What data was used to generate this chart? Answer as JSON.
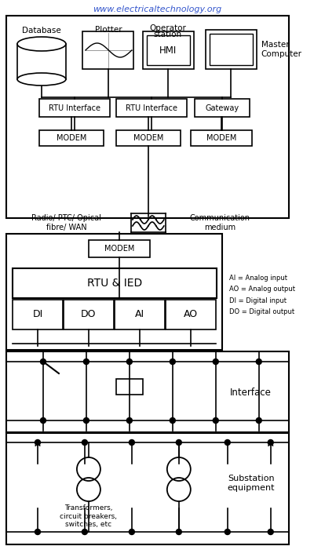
{
  "title": "www.electricaltechnology.org",
  "bg_color": "#ffffff",
  "box_color": "#000000",
  "text_color": "#000000",
  "watermark_color": "#aac8e8",
  "url_color": "#3355cc",
  "legend_text": "AI = Analog input\nAO = Analog output\nDI = Digital input\nDO = Digital output",
  "comm_left": "Radio/ PTC/ Opical\nfibre/ WAN",
  "comm_right": "Communication\nmedium",
  "interface_label": "Interface",
  "substation_label": "Substation\nequipment",
  "transformer_label": "Transformers,\ncircuit breakers,\nswitches, etc"
}
